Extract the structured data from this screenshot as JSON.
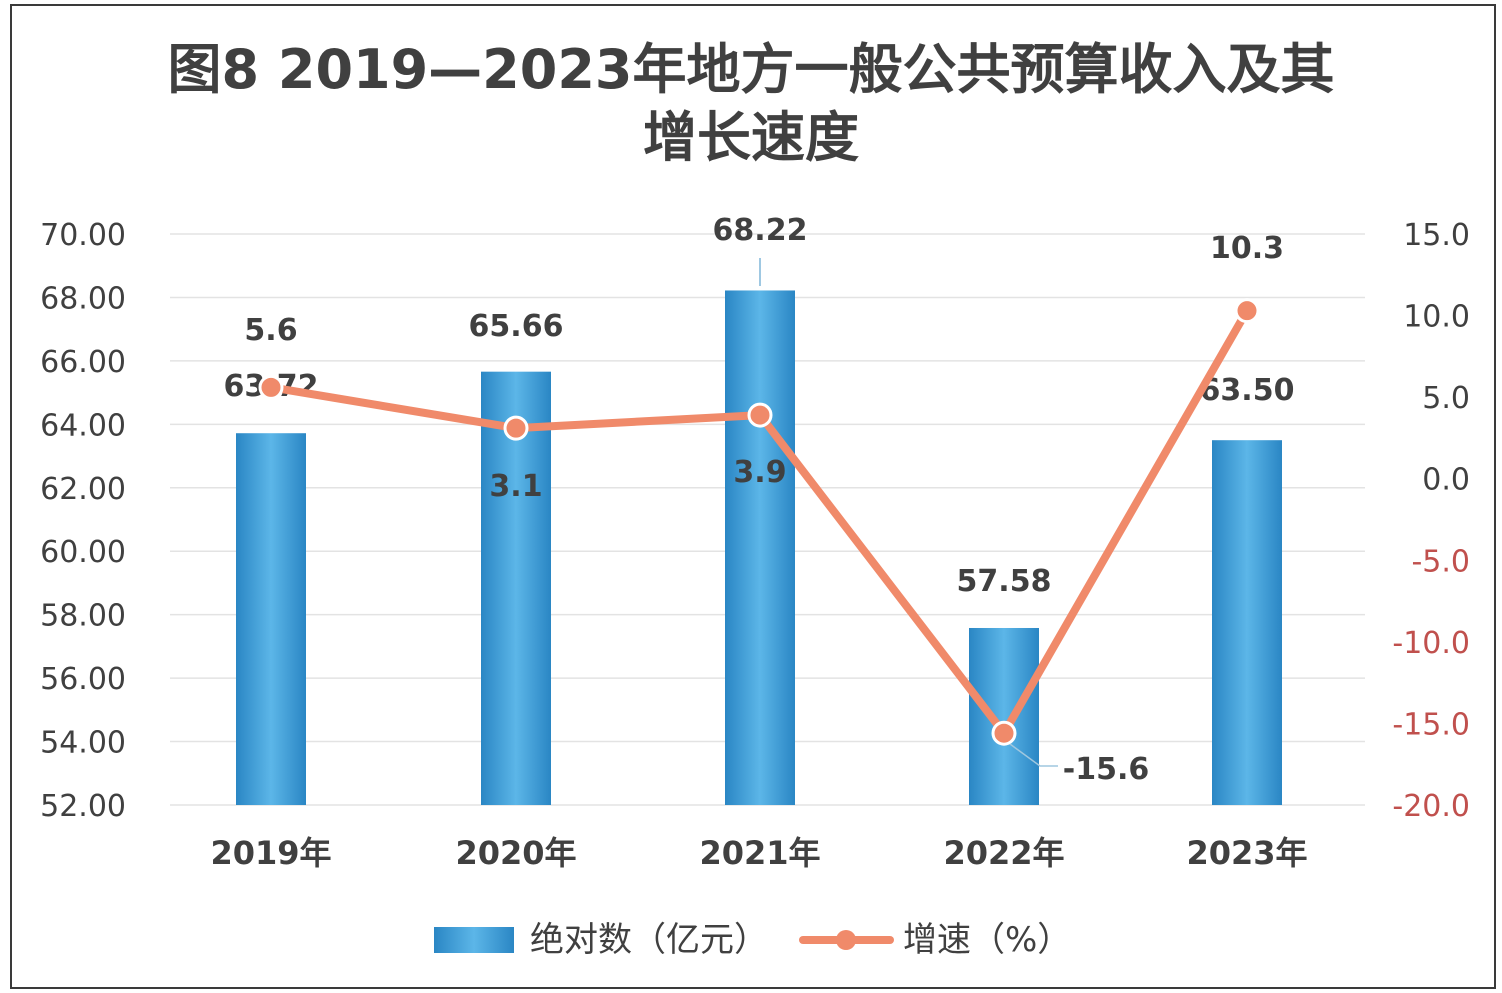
{
  "chart_data": {
    "type": "bar+line",
    "title_line1": "图8 2019—2023年地方一般公共预算收入及其",
    "title_line2": "增长速度",
    "categories": [
      "2019年",
      "2020年",
      "2021年",
      "2022年",
      "2023年"
    ],
    "series": [
      {
        "name": "绝对数（亿元）",
        "type": "bar",
        "axis": "left",
        "values": [
          63.72,
          65.66,
          68.22,
          57.58,
          63.5
        ],
        "labels": [
          "63.72",
          "65.66",
          "68.22",
          "57.58",
          "63.50"
        ],
        "color": "#3a9bd5"
      },
      {
        "name": "增速（%）",
        "type": "line",
        "axis": "right",
        "values": [
          5.6,
          3.1,
          3.9,
          -15.6,
          10.3
        ],
        "labels": [
          "5.6",
          "3.1",
          "3.9",
          "-15.6",
          "10.3"
        ],
        "color": "#f08a6a"
      }
    ],
    "y_left": {
      "min": 52,
      "max": 70,
      "step": 2,
      "ticks": [
        "52.00",
        "54.00",
        "56.00",
        "58.00",
        "60.00",
        "62.00",
        "64.00",
        "66.00",
        "68.00",
        "70.00"
      ]
    },
    "y_right": {
      "min": -20,
      "max": 15,
      "step": 5,
      "ticks": [
        "-20.0",
        "-15.0",
        "-10.0",
        "-5.0",
        "0.0",
        "5.0",
        "10.0",
        "15.0"
      ],
      "negative_color": "#c0504d",
      "positive_color": "#404040"
    },
    "grid": true,
    "legend": "bottom"
  }
}
